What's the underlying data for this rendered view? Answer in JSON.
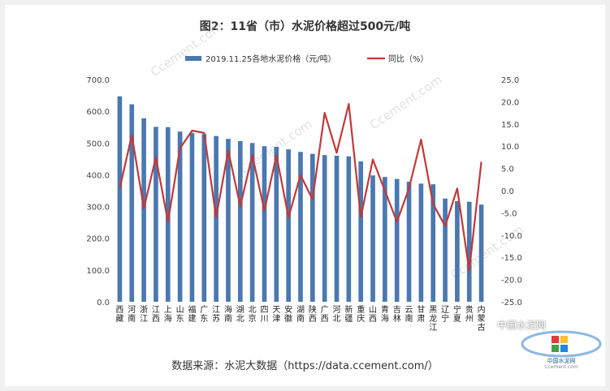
{
  "title": "图2：11省（市）水泥价格超过500元/吨",
  "source": "数据来源：水泥大数据（https://data.ccement.com/）",
  "watermark": {
    "site": "Ccement.com",
    "corner": "中国水泥网",
    "logo_name": "中国水泥网",
    "logo_site": "Ccement.com"
  },
  "colors": {
    "bar": "#4a78b0",
    "line": "#c0393a",
    "grid": "#e4e4e4"
  },
  "chart_data": {
    "type": "bar",
    "categories": [
      "西藏",
      "河南",
      "浙江",
      "江西",
      "上海",
      "山东",
      "福建",
      "广东",
      "江苏",
      "海南",
      "湖北",
      "北京",
      "四川",
      "天津",
      "安徽",
      "湖南",
      "陕西",
      "广西",
      "河北",
      "新疆",
      "重庆",
      "山西",
      "青海",
      "吉林",
      "云南",
      "甘肃",
      "黑龙江",
      "辽宁",
      "宁夏",
      "贵州",
      "内蒙古"
    ],
    "series": [
      {
        "name": "2019.11.25各地水泥价格（元/吨）",
        "type": "bar",
        "axis": "left",
        "values": [
          647,
          622,
          578,
          551,
          550,
          536,
          532,
          528,
          522,
          513,
          506,
          500,
          490,
          488,
          480,
          472,
          466,
          462,
          460,
          458,
          442,
          398,
          393,
          387,
          378,
          372,
          370,
          325,
          317,
          315,
          306
        ]
      },
      {
        "name": "同比（%）",
        "type": "line",
        "axis": "right",
        "values": [
          0.5,
          12.5,
          -4.0,
          7.5,
          -7.0,
          9.5,
          13.5,
          13.0,
          -6.0,
          9.0,
          -3.5,
          8.0,
          -4.5,
          8.0,
          -6.0,
          3.5,
          -2.0,
          17.5,
          8.5,
          19.5,
          -6.0,
          7.0,
          0.0,
          -7.0,
          0.5,
          11.5,
          -3.0,
          -8.0,
          0.5,
          -18.0,
          6.5
        ]
      }
    ],
    "yLeft": {
      "min": 0,
      "max": 700,
      "step": 100,
      "ticks": [
        "0.0",
        "100.0",
        "200.0",
        "300.0",
        "400.0",
        "500.0",
        "600.0",
        "700.0"
      ]
    },
    "yRight": {
      "min": -25,
      "max": 25,
      "step": 5,
      "ticks": [
        "-25.0",
        "-20.0",
        "-15.0",
        "-10.0",
        "-5.0",
        "0.0",
        "5.0",
        "10.0",
        "15.0",
        "20.0",
        "25.0"
      ]
    },
    "legend": "top",
    "grid": false
  }
}
